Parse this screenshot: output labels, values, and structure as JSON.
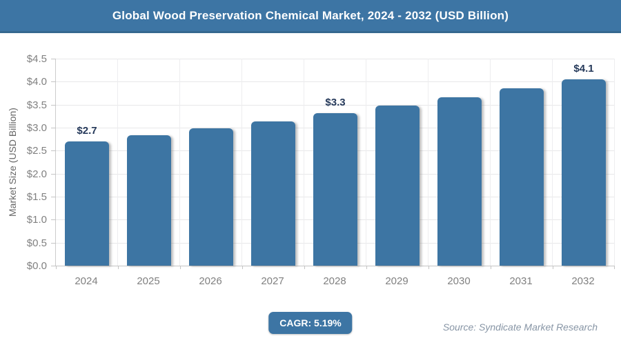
{
  "header": {
    "title": "Global Wood Preservation Chemical Market, 2024 - 2032 (USD Billion)"
  },
  "chart_data": {
    "type": "bar",
    "title": "Global Wood Preservation Chemical Market, 2024 - 2032 (USD Billion)",
    "categories": [
      "2024",
      "2025",
      "2026",
      "2027",
      "2028",
      "2029",
      "2030",
      "2031",
      "2032"
    ],
    "values": [
      2.7,
      2.84,
      2.99,
      3.14,
      3.31,
      3.48,
      3.66,
      3.85,
      4.05
    ],
    "data_labels": [
      "$2.7",
      null,
      null,
      null,
      "$3.3",
      null,
      null,
      null,
      "$4.1"
    ],
    "ylabel": "Market Size (USD Billion)",
    "xlabel": "",
    "ylim": [
      0,
      4.5
    ],
    "ytick_step": 0.5,
    "ytick_prefix": "$",
    "grid": "horizontal-and-vertical",
    "legend": "none",
    "bar_color": "#3d75a3"
  },
  "footer": {
    "cagr_label": "CAGR: 5.19%",
    "source": "Source: Syndicate Market Research"
  },
  "colors": {
    "accent_blue": "#3d75a4",
    "header_border": "#35688f",
    "data_label_navy": "#25395a",
    "axis_text_gray": "#808080",
    "gridline": "#e7e7e9",
    "source_text": "#8795a5"
  }
}
